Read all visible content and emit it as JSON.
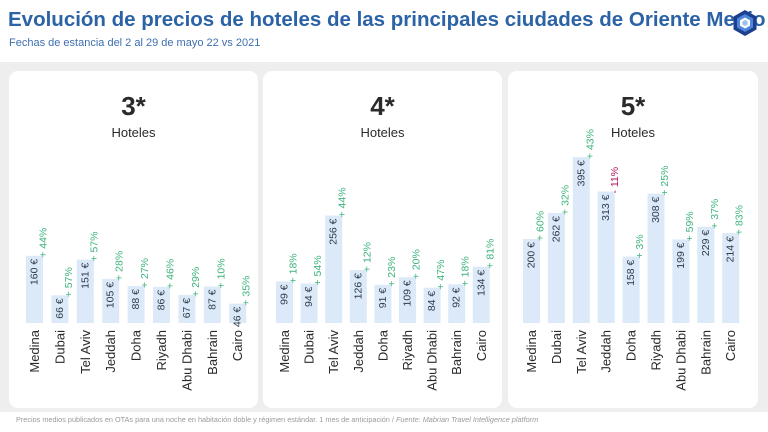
{
  "header": {
    "title": "Evolución de precios de hoteles de las principales ciudades de Oriente Medio",
    "subtitle": "Fechas de estancia del 2 al 29 de mayo 22 vs 2021"
  },
  "logo": {
    "icon": "hexagon-logo-icon",
    "colors": [
      "#1d3f8f",
      "#4f86d9",
      "#9cc0ef"
    ]
  },
  "footnote": {
    "text": "Precios medios publicados en OTAs para una noche en habitación doble y régimen estándar. 1 mes de anticipación / ",
    "source": "Fuente: Mabrian Travel Intelligence platform"
  },
  "colors": {
    "bar": "#dce9f8",
    "label": "#2f3c4a",
    "positive": "#3db37c",
    "negative": "#b3145a",
    "title": "#2b63a6",
    "panel_bg": "#eeeeee"
  },
  "chart_data": [
    {
      "type": "bar",
      "title": "3*",
      "subtitle": "Hoteles",
      "categories": [
        "Medina",
        "Dubai",
        "Tel Aviv",
        "Jeddah",
        "Doha",
        "Riyadh",
        "Abu Dhabi",
        "Bahrain",
        "Cairo"
      ],
      "values": [
        160,
        66,
        151,
        105,
        88,
        86,
        67,
        87,
        46
      ],
      "value_labels": [
        "160 €",
        "66 €",
        "151 €",
        "105 €",
        "88 €",
        "86 €",
        "67 €",
        "87 €",
        "46 €"
      ],
      "changes": [
        "+ 44%",
        "+ 57%",
        "+ 57%",
        "+ 28%",
        "+ 27%",
        "+ 46%",
        "+ 29%",
        "+ 10%",
        "+ 35%"
      ]
    },
    {
      "type": "bar",
      "title": "4*",
      "subtitle": "Hoteles",
      "categories": [
        "Medina",
        "Dubai",
        "Tel Aviv",
        "Jeddah",
        "Doha",
        "Riyadh",
        "Abu Dhabi",
        "Bahrain",
        "Cairo"
      ],
      "values": [
        99,
        94,
        256,
        126,
        91,
        109,
        84,
        92,
        134
      ],
      "value_labels": [
        "99 €",
        "94 €",
        "256 €",
        "126 €",
        "91 €",
        "109 €",
        "84 €",
        "92 €",
        "134 €"
      ],
      "changes": [
        "+ 18%",
        "+ 54%",
        "+ 44%",
        "+ 12%",
        "+ 23%",
        "+ 20%",
        "+ 47%",
        "+ 18%",
        "+ 81%"
      ]
    },
    {
      "type": "bar",
      "title": "5*",
      "subtitle": "Hoteles",
      "categories": [
        "Medina",
        "Dubai",
        "Tel Aviv",
        "Jeddah",
        "Doha",
        "Riyadh",
        "Abu Dhabi",
        "Bahrain",
        "Cairo"
      ],
      "values": [
        200,
        262,
        395,
        313,
        158,
        308,
        199,
        229,
        214
      ],
      "value_labels": [
        "200 €",
        "262 €",
        "395 €",
        "313 €",
        "158 €",
        "308 €",
        "199 €",
        "229 €",
        "214 €"
      ],
      "changes": [
        "+ 60%",
        "+ 32%",
        "+ 43%",
        "- 11%",
        "+ 3%",
        "+ 25%",
        "+ 59%",
        "+ 37%",
        "+ 83%"
      ]
    }
  ]
}
